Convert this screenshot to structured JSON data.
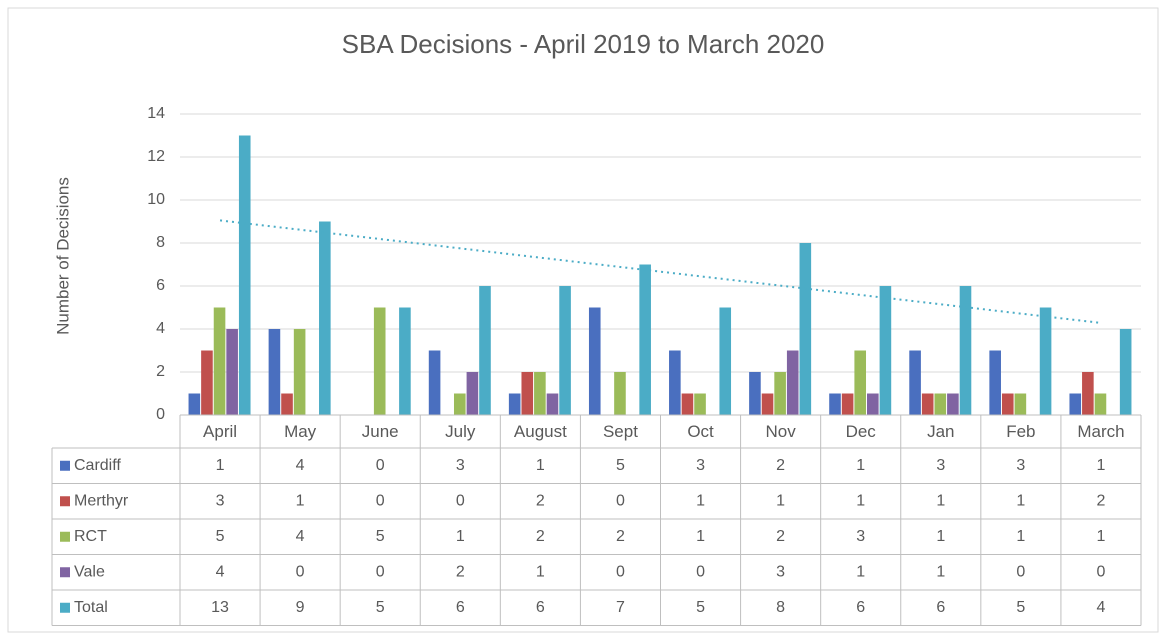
{
  "chart_data": {
    "type": "bar",
    "title": "SBA Decisions - April 2019 to March 2020",
    "y_label": "Number of Decisions",
    "categories": [
      "April",
      "May",
      "June",
      "July",
      "August",
      "Sept",
      "Oct",
      "Nov",
      "Dec",
      "Jan",
      "Feb",
      "March"
    ],
    "series": [
      {
        "name": "Cardiff",
        "color": "#4a6fbf",
        "values": [
          1,
          4,
          0,
          3,
          1,
          5,
          3,
          2,
          1,
          3,
          3,
          1
        ]
      },
      {
        "name": "Merthyr",
        "color": "#c0504d",
        "values": [
          3,
          1,
          0,
          0,
          2,
          0,
          1,
          1,
          1,
          1,
          1,
          2
        ]
      },
      {
        "name": "RCT",
        "color": "#9bbb59",
        "values": [
          5,
          4,
          5,
          1,
          2,
          2,
          1,
          2,
          3,
          1,
          1,
          1
        ]
      },
      {
        "name": "Vale",
        "color": "#8064a2",
        "values": [
          4,
          0,
          0,
          2,
          1,
          0,
          0,
          3,
          1,
          1,
          0,
          0
        ]
      },
      {
        "name": "Total",
        "color": "#4bacc6",
        "values": [
          13,
          9,
          5,
          6,
          6,
          7,
          5,
          8,
          6,
          6,
          5,
          4
        ],
        "trendline": "linear"
      }
    ],
    "ylim": [
      0,
      14
    ],
    "yticks": [
      0,
      2,
      4,
      6,
      8,
      10,
      12,
      14
    ],
    "grid": true,
    "data_table": true
  }
}
